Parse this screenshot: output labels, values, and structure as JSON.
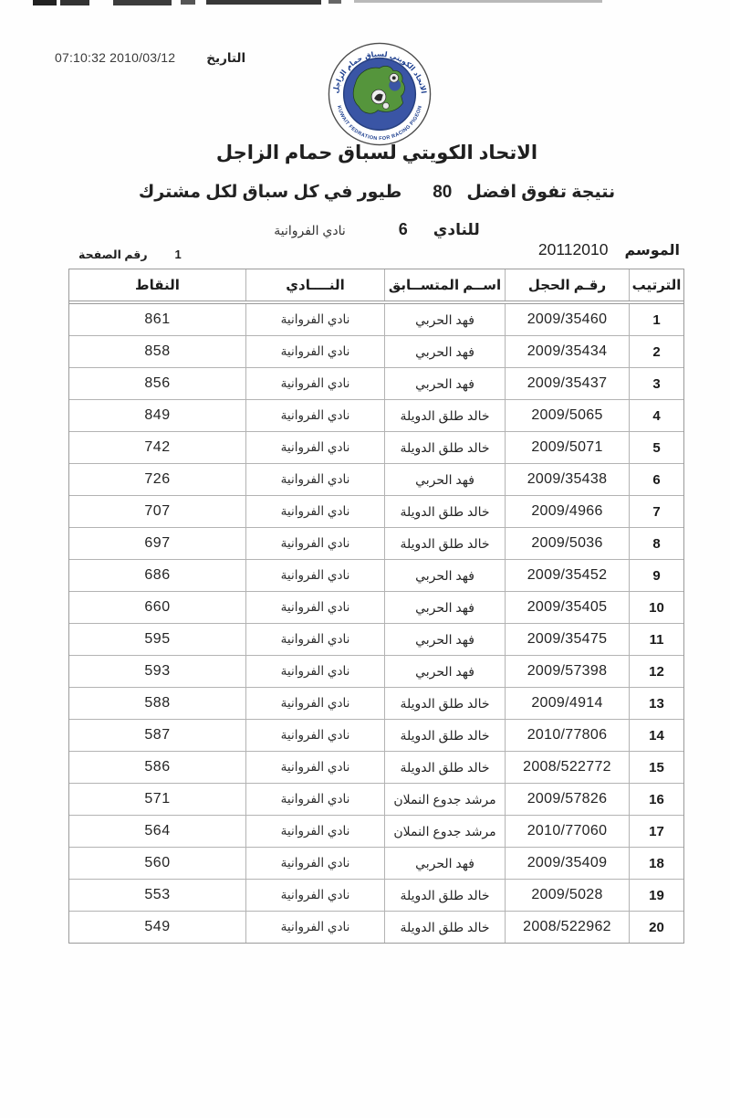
{
  "header": {
    "timestamp": "07:10:32 2010/03/12",
    "date_label": "التاريخ",
    "title": "الاتحاد الكويتي لسباق حمام الزاجل",
    "subtitle_right": "نتيجة تفوق  افضل",
    "subtitle_number": "80",
    "subtitle_left": "طيور في كل سباق لكل مشترك",
    "club_label": "للنادي",
    "club_number": "6",
    "club_name": "نادي الفروانية",
    "season_label": "الموسم",
    "season_value": "20112010",
    "page_label": "رقم الصفحة",
    "page_value": "1"
  },
  "logo": {
    "arabic_arc": "الاتحاد الكويتي لسباق حمام الزاجل",
    "english_arc": "KUWAIT FEDRATION FOR RACING PIGEON",
    "colors": {
      "disc": "#3a55a5",
      "disc_edge": "#27407f",
      "map": "#55953c",
      "arc_text": "#1d3f8f",
      "ring_stroke": "#4d4d4d"
    }
  },
  "table": {
    "headers": {
      "rank": "الترتيب",
      "ring": "رقـم الحجل",
      "name": "اســم المتســابق",
      "club": "النــــادي",
      "points": "النقاط"
    },
    "rows": [
      {
        "rank": "1",
        "ring": "2009/35460",
        "name": "فهد الحربي",
        "club": "نادي الفروانية",
        "points": "861"
      },
      {
        "rank": "2",
        "ring": "2009/35434",
        "name": "فهد الحربي",
        "club": "نادي الفروانية",
        "points": "858"
      },
      {
        "rank": "3",
        "ring": "2009/35437",
        "name": "فهد الحربي",
        "club": "نادي الفروانية",
        "points": "856"
      },
      {
        "rank": "4",
        "ring": "2009/5065",
        "name": "خالد طلق الدويلة",
        "club": "نادي الفروانية",
        "points": "849"
      },
      {
        "rank": "5",
        "ring": "2009/5071",
        "name": "خالد طلق الدويلة",
        "club": "نادي الفروانية",
        "points": "742"
      },
      {
        "rank": "6",
        "ring": "2009/35438",
        "name": "فهد الحربي",
        "club": "نادي الفروانية",
        "points": "726"
      },
      {
        "rank": "7",
        "ring": "2009/4966",
        "name": "خالد طلق الدويلة",
        "club": "نادي الفروانية",
        "points": "707"
      },
      {
        "rank": "8",
        "ring": "2009/5036",
        "name": "خالد طلق الدويلة",
        "club": "نادي الفروانية",
        "points": "697"
      },
      {
        "rank": "9",
        "ring": "2009/35452",
        "name": "فهد الحربي",
        "club": "نادي الفروانية",
        "points": "686"
      },
      {
        "rank": "10",
        "ring": "2009/35405",
        "name": "فهد الحربي",
        "club": "نادي الفروانية",
        "points": "660"
      },
      {
        "rank": "11",
        "ring": "2009/35475",
        "name": "فهد الحربي",
        "club": "نادي الفروانية",
        "points": "595"
      },
      {
        "rank": "12",
        "ring": "2009/57398",
        "name": "فهد الحربي",
        "club": "نادي الفروانية",
        "points": "593"
      },
      {
        "rank": "13",
        "ring": "2009/4914",
        "name": "خالد طلق الدويلة",
        "club": "نادي الفروانية",
        "points": "588"
      },
      {
        "rank": "14",
        "ring": "2010/77806",
        "name": "خالد طلق الدويلة",
        "club": "نادي الفروانية",
        "points": "587"
      },
      {
        "rank": "15",
        "ring": "2008/522772",
        "name": "خالد طلق الدويلة",
        "club": "نادي الفروانية",
        "points": "586"
      },
      {
        "rank": "16",
        "ring": "2009/57826",
        "name": "مرشد جدوع النملان",
        "club": "نادي الفروانية",
        "points": "571"
      },
      {
        "rank": "17",
        "ring": "2010/77060",
        "name": "مرشد جدوع النملان",
        "club": "نادي الفروانية",
        "points": "564"
      },
      {
        "rank": "18",
        "ring": "2009/35409",
        "name": "فهد الحربي",
        "club": "نادي الفروانية",
        "points": "560"
      },
      {
        "rank": "19",
        "ring": "2009/5028",
        "name": "خالد طلق الدويلة",
        "club": "نادي الفروانية",
        "points": "553"
      },
      {
        "rank": "20",
        "ring": "2008/522962",
        "name": "خالد طلق الدويلة",
        "club": "نادي الفروانية",
        "points": "549"
      }
    ]
  }
}
